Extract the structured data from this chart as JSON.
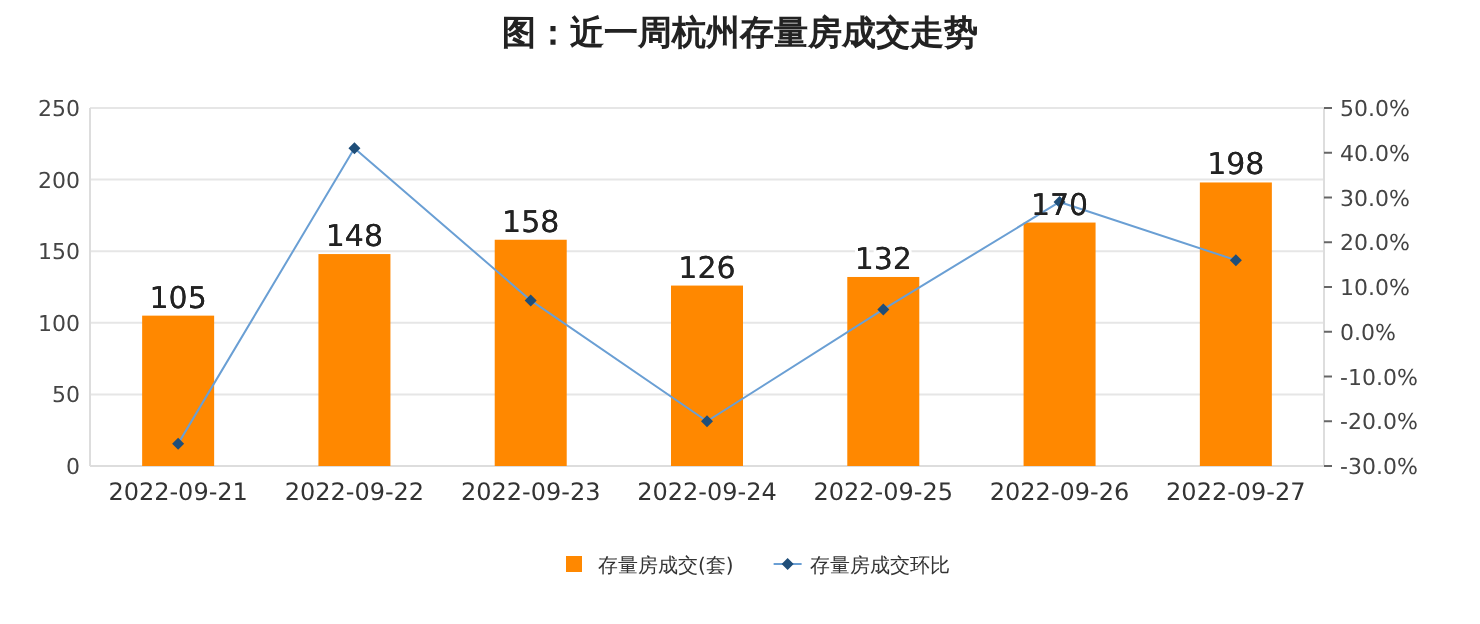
{
  "chart_data": {
    "type": "bar",
    "title": "图：近一周杭州存量房成交走势",
    "categories": [
      "2022-09-21",
      "2022-09-22",
      "2022-09-23",
      "2022-09-24",
      "2022-09-25",
      "2022-09-26",
      "2022-09-27"
    ],
    "series": [
      {
        "name": "存量房成交(套)",
        "color": "#ff8800",
        "values": [
          105,
          148,
          158,
          126,
          132,
          170,
          198
        ],
        "value_labels": [
          "105",
          "148",
          "158",
          "126",
          "132",
          "170",
          "198"
        ]
      },
      {
        "name": "存量房成交环比",
        "type": "line",
        "axis": "y2",
        "color": "#6a9fd4",
        "marker": "diamond",
        "values": [
          -25,
          41,
          7,
          -20,
          5,
          29,
          16
        ]
      }
    ],
    "ylim": [
      0,
      250
    ],
    "yticks": [
      0,
      50,
      100,
      150,
      200,
      250
    ],
    "y2lim": [
      -30,
      50
    ],
    "y2ticks": [
      {
        "value": -30,
        "label": "-30.0%"
      },
      {
        "value": -20,
        "label": "-20.0%"
      },
      {
        "value": -10,
        "label": "-10.0%"
      },
      {
        "value": 0,
        "label": "0.0%"
      },
      {
        "value": 10,
        "label": "10.0%"
      },
      {
        "value": 20,
        "label": "20.0%"
      },
      {
        "value": 30,
        "label": "30.0%"
      },
      {
        "value": 40,
        "label": "40.0%"
      },
      {
        "value": 50,
        "label": "50.0%"
      }
    ],
    "grid": "y",
    "legend": "bottom"
  }
}
